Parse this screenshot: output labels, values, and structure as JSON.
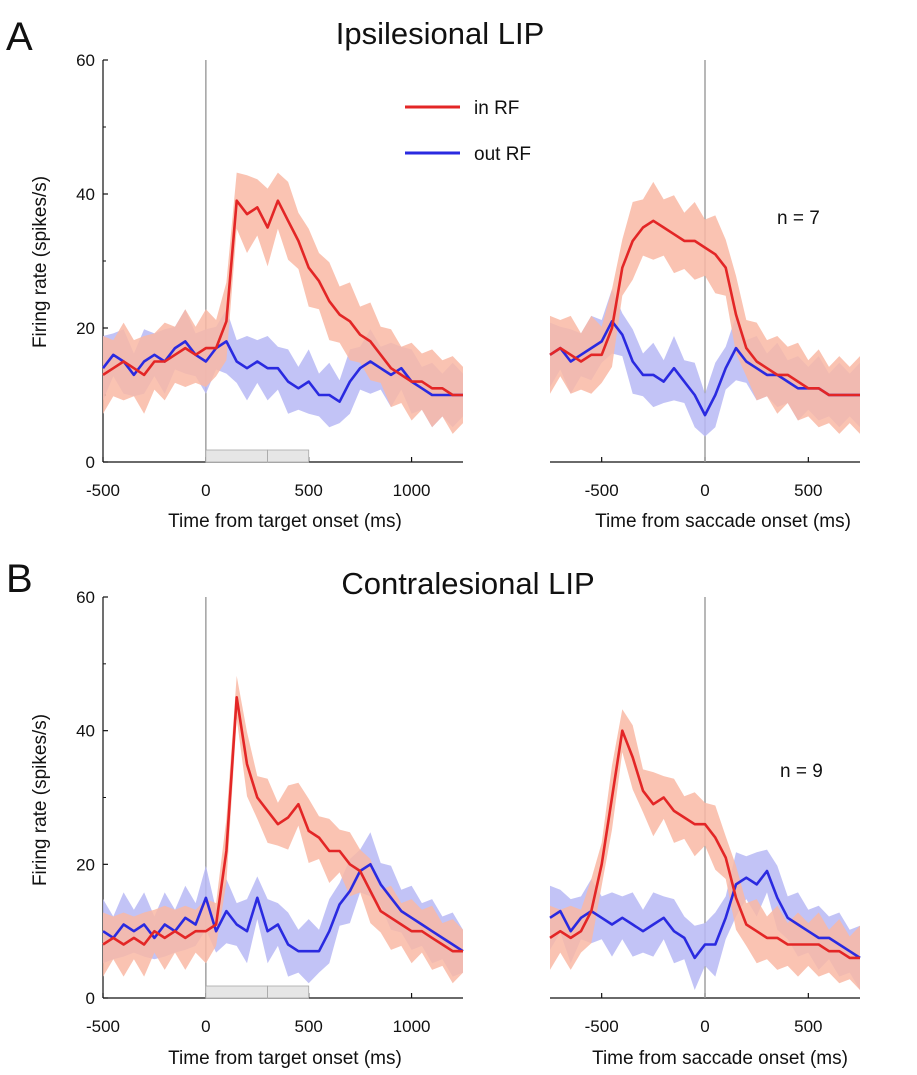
{
  "figure": {
    "legend": [
      {
        "label": "in RF",
        "color": "#e32626"
      },
      {
        "label": "out RF",
        "color": "#2a2ae0"
      }
    ],
    "colors": {
      "in_rf_line": "#e32626",
      "in_rf_band": "#f9b9a4",
      "out_rf_line": "#2a2ae0",
      "out_rf_band": "#b7b9f4",
      "onset_line": "#9a9a9a",
      "epoch_bar": "#e6e6e6"
    }
  },
  "panels": [
    {
      "letter": "A",
      "title": "Ipsilesional LIP",
      "ylabel": "Firing rate (spikes/s)",
      "y_ticks": [
        "0",
        "20",
        "40",
        "60"
      ],
      "n_label": "n = 7",
      "left_xlabel": "Time from target onset (ms)",
      "left_x_ticks": [
        "-500",
        "0",
        "500",
        "1000"
      ],
      "right_xlabel": "Time from saccade onset (ms)",
      "right_x_ticks": [
        "-500",
        "0",
        "500"
      ]
    },
    {
      "letter": "B",
      "title": "Contralesional LIP",
      "ylabel": "Firing rate (spikes/s)",
      "y_ticks": [
        "0",
        "20",
        "40",
        "60"
      ],
      "n_label": "n = 9",
      "left_xlabel": "Time from target onset (ms)",
      "left_x_ticks": [
        "-500",
        "0",
        "500",
        "1000"
      ],
      "right_xlabel": "Time from saccade onset (ms)",
      "right_x_ticks": [
        "-500",
        "0",
        "500"
      ]
    }
  ],
  "chart_data": [
    {
      "type": "line",
      "panel": "A",
      "alignment": "target onset",
      "xlabel": "Time from target onset (ms)",
      "ylabel": "Firing rate (spikes/s)",
      "xlim": [
        -500,
        1250
      ],
      "ylim": [
        0,
        60
      ],
      "x_ticks": [
        -500,
        0,
        500,
        1000
      ],
      "y_ticks": [
        0,
        20,
        40,
        60
      ],
      "vline_x": 0,
      "epoch_bars": [
        [
          0,
          300
        ],
        [
          300,
          500
        ]
      ],
      "x": [
        -500,
        -450,
        -400,
        -350,
        -300,
        -250,
        -200,
        -150,
        -100,
        -50,
        0,
        50,
        100,
        150,
        200,
        250,
        300,
        350,
        400,
        450,
        500,
        550,
        600,
        650,
        700,
        750,
        800,
        850,
        900,
        950,
        1000,
        1050,
        1100,
        1150,
        1200,
        1250
      ],
      "series": [
        {
          "name": "in RF",
          "values": [
            13,
            14,
            15,
            14,
            13,
            15,
            15,
            16,
            17,
            16,
            17,
            17,
            21,
            39,
            37,
            38,
            35,
            39,
            36,
            33,
            29,
            27,
            24,
            22,
            21,
            19,
            18,
            16,
            14,
            13,
            12,
            12,
            11,
            11,
            10,
            10
          ],
          "band": 5
        },
        {
          "name": "out RF",
          "values": [
            14,
            16,
            15,
            13,
            15,
            16,
            15,
            17,
            18,
            16,
            15,
            17,
            18,
            15,
            14,
            15,
            14,
            14,
            12,
            11,
            12,
            10,
            10,
            9,
            12,
            14,
            15,
            14,
            13,
            14,
            12,
            11,
            10,
            10,
            10,
            10
          ],
          "band": 4
        }
      ]
    },
    {
      "type": "line",
      "panel": "A",
      "alignment": "saccade onset",
      "xlabel": "Time from saccade onset (ms)",
      "ylabel": "Firing rate (spikes/s)",
      "xlim": [
        -750,
        750
      ],
      "ylim": [
        0,
        60
      ],
      "x_ticks": [
        -500,
        0,
        500
      ],
      "y_ticks": [
        0,
        20,
        40,
        60
      ],
      "vline_x": 0,
      "n_label": "n = 7",
      "x": [
        -750,
        -700,
        -650,
        -600,
        -550,
        -500,
        -450,
        -400,
        -350,
        -300,
        -250,
        -200,
        -150,
        -100,
        -50,
        0,
        50,
        100,
        150,
        200,
        250,
        300,
        350,
        400,
        450,
        500,
        550,
        600,
        650,
        700,
        750
      ],
      "series": [
        {
          "name": "in RF",
          "values": [
            16,
            17,
            16,
            15,
            16,
            16,
            20,
            29,
            33,
            35,
            36,
            35,
            34,
            33,
            33,
            32,
            31,
            29,
            22,
            17,
            15,
            14,
            13,
            13,
            12,
            11,
            11,
            10,
            10,
            10,
            10
          ],
          "band": 5
        },
        {
          "name": "out RF",
          "values": [
            16,
            17,
            15,
            16,
            17,
            18,
            21,
            19,
            15,
            13,
            13,
            12,
            14,
            12,
            10,
            7,
            10,
            14,
            17,
            15,
            14,
            13,
            13,
            12,
            11,
            11,
            11,
            10,
            10,
            10,
            10
          ],
          "band": 4
        }
      ]
    },
    {
      "type": "line",
      "panel": "B",
      "alignment": "target onset",
      "xlabel": "Time from target onset (ms)",
      "ylabel": "Firing rate (spikes/s)",
      "xlim": [
        -500,
        1250
      ],
      "ylim": [
        0,
        60
      ],
      "x_ticks": [
        -500,
        0,
        500,
        1000
      ],
      "y_ticks": [
        0,
        20,
        40,
        60
      ],
      "vline_x": 0,
      "epoch_bars": [
        [
          0,
          300
        ],
        [
          300,
          500
        ]
      ],
      "x": [
        -500,
        -450,
        -400,
        -350,
        -300,
        -250,
        -200,
        -150,
        -100,
        -50,
        0,
        50,
        100,
        150,
        200,
        250,
        300,
        350,
        400,
        450,
        500,
        550,
        600,
        650,
        700,
        750,
        800,
        850,
        900,
        950,
        1000,
        1050,
        1100,
        1150,
        1200,
        1250
      ],
      "series": [
        {
          "name": "in RF",
          "values": [
            8,
            9,
            8,
            9,
            8,
            10,
            9,
            10,
            9,
            10,
            10,
            11,
            22,
            45,
            35,
            30,
            28,
            26,
            27,
            29,
            25,
            24,
            22,
            22,
            20,
            19,
            16,
            13,
            12,
            11,
            10,
            10,
            9,
            8,
            7,
            7
          ],
          "band": 4
        },
        {
          "name": "out RF",
          "values": [
            10,
            9,
            11,
            10,
            11,
            9,
            11,
            10,
            12,
            11,
            15,
            10,
            13,
            11,
            10,
            15,
            10,
            11,
            8,
            7,
            7,
            7,
            10,
            14,
            16,
            19,
            20,
            17,
            15,
            13,
            12,
            11,
            10,
            9,
            8,
            7
          ],
          "band": 4
        }
      ]
    },
    {
      "type": "line",
      "panel": "B",
      "alignment": "saccade onset",
      "xlabel": "Time from saccade onset (ms)",
      "ylabel": "Firing rate (spikes/s)",
      "xlim": [
        -750,
        750
      ],
      "ylim": [
        0,
        60
      ],
      "x_ticks": [
        -500,
        0,
        500
      ],
      "y_ticks": [
        0,
        20,
        40,
        60
      ],
      "vline_x": 0,
      "n_label": "n = 9",
      "x": [
        -750,
        -700,
        -650,
        -600,
        -550,
        -500,
        -450,
        -400,
        -350,
        -300,
        -250,
        -200,
        -150,
        -100,
        -50,
        0,
        50,
        100,
        150,
        200,
        250,
        300,
        350,
        400,
        450,
        500,
        550,
        600,
        650,
        700,
        750
      ],
      "series": [
        {
          "name": "in RF",
          "values": [
            9,
            10,
            9,
            10,
            13,
            20,
            30,
            40,
            36,
            31,
            29,
            30,
            28,
            27,
            26,
            26,
            24,
            21,
            15,
            11,
            10,
            9,
            9,
            8,
            8,
            8,
            8,
            7,
            7,
            6,
            6
          ],
          "band": 4
        },
        {
          "name": "out RF",
          "values": [
            12,
            13,
            10,
            12,
            13,
            12,
            11,
            12,
            11,
            10,
            11,
            12,
            10,
            9,
            6,
            8,
            8,
            12,
            17,
            18,
            17,
            19,
            15,
            12,
            11,
            10,
            9,
            9,
            8,
            7,
            6
          ],
          "band": 4
        }
      ]
    }
  ]
}
